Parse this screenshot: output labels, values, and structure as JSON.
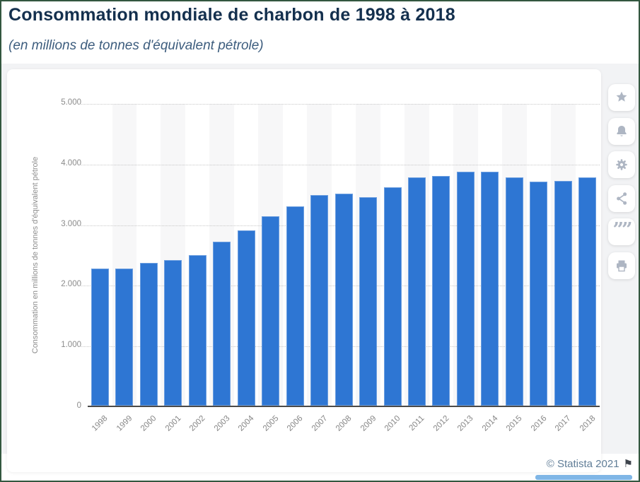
{
  "header": {
    "title": "Consommation mondiale de charbon de 1998 à 2018",
    "subtitle": "(en millions de tonnes d'équivalent pétrole)"
  },
  "toolbar": {
    "buttons": [
      "favorite",
      "notifications",
      "settings",
      "share",
      "cite",
      "print"
    ],
    "quote_glyph": "””"
  },
  "footer": {
    "copyright": "© Statista 2021",
    "flag_glyph": "⚑"
  },
  "colors": {
    "bar": "#2e76d3",
    "stripe": "#f7f7f8",
    "title_text": "#14304e",
    "subtitle_text": "#3d5d7e",
    "axis_text": "#8b8b8b",
    "page_background": "#f2f3f5",
    "border": "#33573f",
    "scrollbar_thumb": "#7fb6e6"
  },
  "chart_data": {
    "type": "bar",
    "title": "Consommation mondiale de charbon de 1998 à 2018",
    "subtitle": "(en millions de tonnes d'équivalent pétrole)",
    "categories": [
      "1998",
      "1999",
      "2000",
      "2001",
      "2002",
      "2003",
      "2004",
      "2005",
      "2006",
      "2007",
      "2008",
      "2009",
      "2010",
      "2011",
      "2012",
      "2013",
      "2014",
      "2015",
      "2016",
      "2017",
      "2018"
    ],
    "values": [
      2265,
      2260,
      2360,
      2400,
      2480,
      2705,
      2895,
      3120,
      3290,
      3475,
      3495,
      3440,
      3600,
      3770,
      3790,
      3860,
      3855,
      3760,
      3700,
      3710,
      3760
    ],
    "xlabel": "",
    "ylabel": "Consommation en millions de tonnes d'équivalent pétrole",
    "ylim": [
      0,
      5000
    ],
    "yticks": [
      0,
      1000,
      2000,
      3000,
      4000,
      5000
    ],
    "ytick_labels": [
      "0",
      "1.000",
      "2.000",
      "3.000",
      "4.000",
      "5.000"
    ],
    "grid": "horizontal-dotted",
    "legend": null
  }
}
